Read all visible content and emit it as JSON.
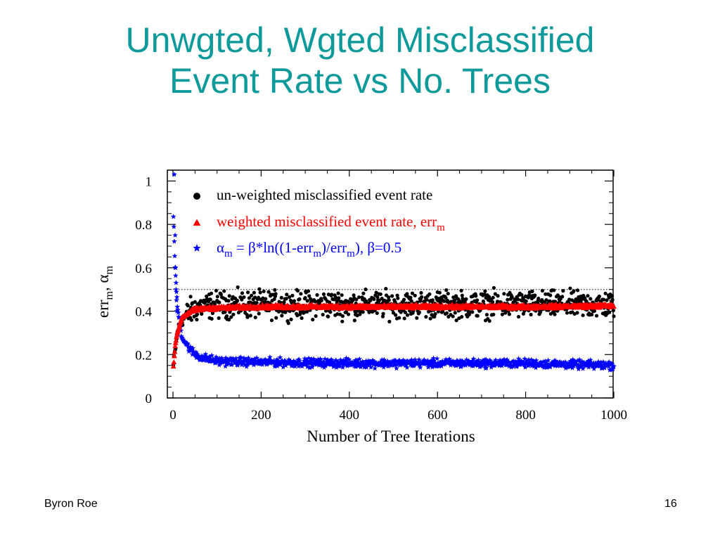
{
  "slide": {
    "title_line1": "Unwgted, Wgted Misclassified",
    "title_line2": "Event Rate vs No. Trees",
    "footer_author": "Byron Roe",
    "page_number": "16"
  },
  "chart_data": {
    "type": "scatter",
    "xlabel": "Number of Tree Iterations",
    "ylabel": "err_m, α_m",
    "xlim": [
      0,
      1000
    ],
    "ylim": [
      0,
      1.05
    ],
    "xticks": [
      0,
      200,
      400,
      600,
      800,
      1000
    ],
    "yticks": [
      0,
      0.2,
      0.4,
      0.6,
      0.8,
      1
    ],
    "reference_line_y": 0.5,
    "legend_position": "top-left",
    "series": [
      {
        "name": "un-weighted misclassified event rate",
        "marker": "circle",
        "color": "#000000",
        "trend": {
          "x": [
            0,
            5,
            10,
            20,
            40,
            60,
            100,
            200,
            400,
            600,
            800,
            1000
          ],
          "y": [
            0.13,
            0.22,
            0.3,
            0.36,
            0.4,
            0.42,
            0.43,
            0.43,
            0.43,
            0.43,
            0.43,
            0.43
          ]
        },
        "spread": 0.09
      },
      {
        "name": "weighted misclassified event rate, err_m",
        "marker": "triangle",
        "color": "#ff0000",
        "trend": {
          "x": [
            0,
            5,
            10,
            20,
            40,
            60,
            100,
            200,
            400,
            600,
            800,
            1000
          ],
          "y": [
            0.12,
            0.24,
            0.3,
            0.37,
            0.4,
            0.41,
            0.415,
            0.42,
            0.42,
            0.42,
            0.42,
            0.425
          ]
        },
        "spread": 0.012
      },
      {
        "name": "α_m = β*ln((1-err_m)/err_m), β=0.5",
        "marker": "star",
        "color": "#0000ff",
        "trend": {
          "x": [
            0,
            5,
            10,
            20,
            40,
            60,
            100,
            200,
            400,
            600,
            800,
            1000
          ],
          "y": [
            0.9,
            0.6,
            0.42,
            0.28,
            0.22,
            0.19,
            0.17,
            0.165,
            0.16,
            0.16,
            0.16,
            0.15
          ]
        },
        "spread": 0.028,
        "highlighted_points": [
          {
            "x": 3,
            "y": 1.03
          },
          {
            "x": 5,
            "y": 0.75
          },
          {
            "x": 6,
            "y": 0.6
          },
          {
            "x": 7,
            "y": 0.5
          },
          {
            "x": 8,
            "y": 0.45
          },
          {
            "x": 9,
            "y": 0.4
          }
        ]
      }
    ],
    "legend": [
      {
        "label": "un-weighted misclassified event rate",
        "color": "#000000",
        "marker": "circle"
      },
      {
        "label_main": "weighted misclassified event rate, err",
        "label_sub": "m",
        "color": "#ff0000",
        "marker": "triangle"
      },
      {
        "label_parts": [
          "α",
          "m",
          " = β*ln((1-err",
          "m",
          ")/err",
          "m",
          "), β=0.5"
        ],
        "color": "#0000ff",
        "marker": "star"
      }
    ],
    "ylabel_parts": [
      "err",
      "m",
      ", α",
      "m"
    ]
  }
}
